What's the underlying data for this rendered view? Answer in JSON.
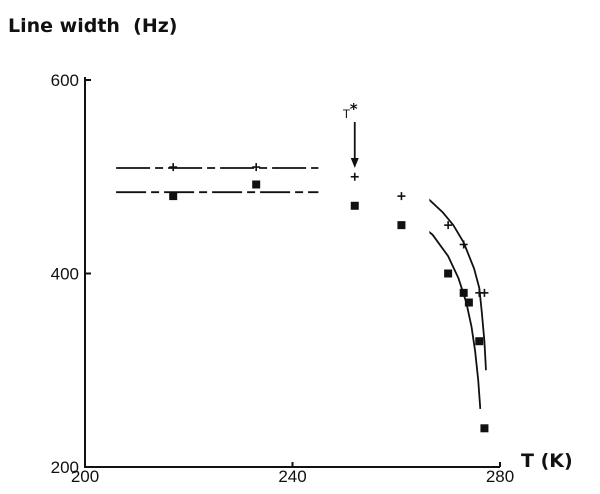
{
  "chart_data": {
    "type": "scatter",
    "title": "Line width  (Hz)",
    "xlabel": "T (K)",
    "ylabel": "",
    "xlim": [
      200,
      280
    ],
    "ylim": [
      200,
      600
    ],
    "xticks": [
      200,
      240,
      280
    ],
    "yticks": [
      200,
      400,
      600
    ],
    "xtick_labels": [
      "200",
      "240",
      "280"
    ],
    "ytick_labels": [
      "200",
      "400",
      "600"
    ],
    "grid": false,
    "annotation": {
      "text": "T",
      "superscript": "*",
      "x": 252,
      "arrow_to_y": 508
    },
    "series": [
      {
        "marker": "plus",
        "x": [
          217,
          233,
          252,
          261,
          270,
          273,
          276,
          277
        ],
        "y": [
          510,
          510,
          500,
          480,
          450,
          430,
          380,
          380
        ],
        "fit": {
          "x": [
            206,
            245,
            252,
            258,
            263,
            266,
            269,
            271,
            273,
            275,
            276,
            276.5,
            277,
            277.3
          ],
          "y": [
            509,
            509,
            507,
            500,
            490,
            478,
            463,
            450,
            432,
            405,
            385,
            360,
            330,
            300
          ]
        }
      },
      {
        "marker": "square",
        "x": [
          217,
          233,
          252,
          261,
          270,
          273,
          274,
          276,
          277
        ],
        "y": [
          480,
          492,
          470,
          450,
          400,
          380,
          370,
          330,
          240
        ],
        "fit": {
          "x": [
            206,
            245,
            252,
            258,
            263,
            267,
            270,
            272,
            273.5,
            274.5,
            275.2,
            275.8,
            276.2
          ],
          "y": [
            484,
            484,
            482,
            472,
            458,
            440,
            418,
            395,
            370,
            345,
            320,
            290,
            260
          ]
        }
      }
    ]
  }
}
